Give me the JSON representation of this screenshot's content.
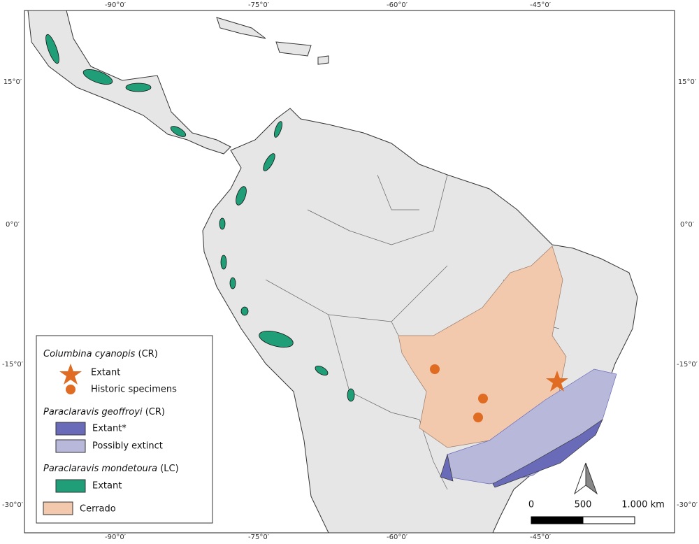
{
  "graticule": {
    "top": [
      "-90°0′",
      "-75°0′",
      "-60°0′",
      "-45°0′"
    ],
    "bottom": [
      "-90°0′",
      "-75°0′",
      "-60°0′",
      "-45°0′"
    ],
    "left": [
      "15°0′",
      "0°0′",
      "-15°0′",
      "-30°0′"
    ],
    "right": [
      "15°0′",
      "0°0′",
      "-15°0′",
      "-30°0′"
    ]
  },
  "legend": {
    "groups": [
      {
        "species": "Columbina cyanopis",
        "status": "(CR)",
        "items": [
          "Extant",
          "Historic specimens"
        ]
      },
      {
        "species": "Paraclaravis geoffroyi",
        "status": "(CR)",
        "items": [
          "Extant*",
          "Possibly extinct"
        ]
      },
      {
        "species": "Paraclaravis mondetoura",
        "status": "(LC)",
        "items": [
          "Extant"
        ]
      }
    ],
    "cerrado": "Cerrado"
  },
  "scale": {
    "labels": [
      "0",
      "500",
      "1.000 km"
    ]
  }
}
